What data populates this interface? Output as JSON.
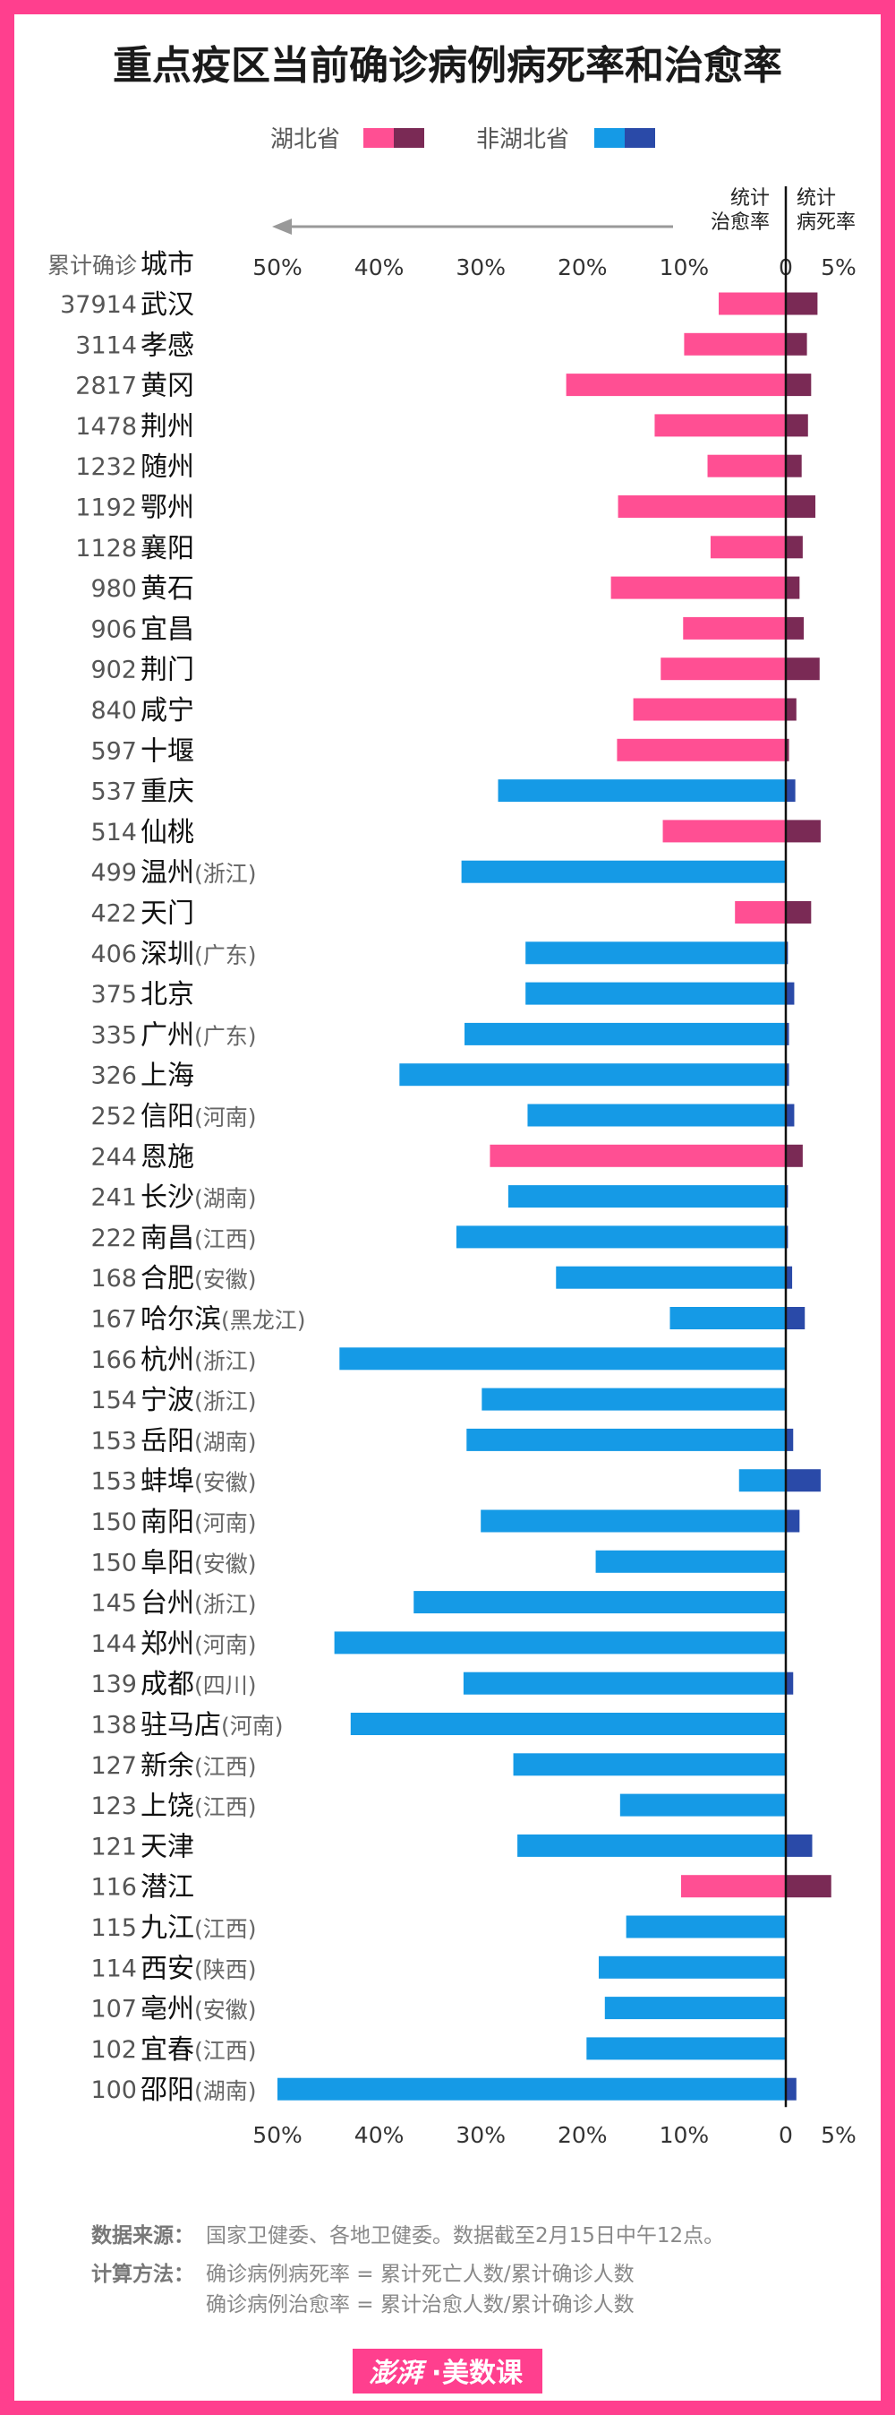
{
  "chart_data": {
    "type": "bar",
    "title": "重点疫区当前确诊病例病死率和治愈率",
    "legend": [
      {
        "name": "湖北省",
        "recovery_color": "#ff4f93",
        "death_color": "#7a2a55"
      },
      {
        "name": "非湖北省",
        "recovery_color": "#159ae6",
        "death_color": "#2a4aa8"
      }
    ],
    "column_headers": {
      "count": "累计确诊",
      "city": "城市",
      "recovery": "统计\n治愈率",
      "death": "统计\n病死率"
    },
    "recovery_axis": {
      "ticks": [
        "50%",
        "40%",
        "30%",
        "20%",
        "10%"
      ],
      "tick_values": [
        50,
        40,
        30,
        20,
        10
      ],
      "max": 50
    },
    "death_axis": {
      "ticks": [
        "0",
        "5%"
      ],
      "tick_values": [
        0,
        5
      ],
      "max": 5
    },
    "rows": [
      {
        "count": "37914",
        "city": "武汉",
        "province": "",
        "hubei": true,
        "recovery": 6.6,
        "death": 3.0
      },
      {
        "count": "3114",
        "city": "孝感",
        "province": "",
        "hubei": true,
        "recovery": 10.0,
        "death": 2.0
      },
      {
        "count": "2817",
        "city": "黄冈",
        "province": "",
        "hubei": true,
        "recovery": 21.6,
        "death": 2.4
      },
      {
        "count": "1478",
        "city": "荆州",
        "province": "",
        "hubei": true,
        "recovery": 12.9,
        "death": 2.1
      },
      {
        "count": "1232",
        "city": "随州",
        "province": "",
        "hubei": true,
        "recovery": 7.7,
        "death": 1.5
      },
      {
        "count": "1192",
        "city": "鄂州",
        "province": "",
        "hubei": true,
        "recovery": 16.5,
        "death": 2.8
      },
      {
        "count": "1128",
        "city": "襄阳",
        "province": "",
        "hubei": true,
        "recovery": 7.4,
        "death": 1.6
      },
      {
        "count": "980",
        "city": "黄石",
        "province": "",
        "hubei": true,
        "recovery": 17.2,
        "death": 1.3
      },
      {
        "count": "906",
        "city": "宜昌",
        "province": "",
        "hubei": true,
        "recovery": 10.1,
        "death": 1.7
      },
      {
        "count": "902",
        "city": "荆门",
        "province": "",
        "hubei": true,
        "recovery": 12.3,
        "death": 3.2
      },
      {
        "count": "840",
        "city": "咸宁",
        "province": "",
        "hubei": true,
        "recovery": 15.0,
        "death": 1.0
      },
      {
        "count": "597",
        "city": "十堰",
        "province": "",
        "hubei": true,
        "recovery": 16.6,
        "death": 0.3
      },
      {
        "count": "537",
        "city": "重庆",
        "province": "",
        "hubei": false,
        "recovery": 28.3,
        "death": 0.9
      },
      {
        "count": "514",
        "city": "仙桃",
        "province": "",
        "hubei": true,
        "recovery": 12.1,
        "death": 3.3
      },
      {
        "count": "499",
        "city": "温州",
        "province": "(浙江)",
        "hubei": false,
        "recovery": 31.9,
        "death": 0.0
      },
      {
        "count": "422",
        "city": "天门",
        "province": "",
        "hubei": true,
        "recovery": 5.0,
        "death": 2.4
      },
      {
        "count": "406",
        "city": "深圳",
        "province": "(广东)",
        "hubei": false,
        "recovery": 25.6,
        "death": 0.2
      },
      {
        "count": "375",
        "city": "北京",
        "province": "",
        "hubei": false,
        "recovery": 25.6,
        "death": 0.8
      },
      {
        "count": "335",
        "city": "广州",
        "province": "(广东)",
        "hubei": false,
        "recovery": 31.6,
        "death": 0.3
      },
      {
        "count": "326",
        "city": "上海",
        "province": "",
        "hubei": false,
        "recovery": 38.0,
        "death": 0.3
      },
      {
        "count": "252",
        "city": "信阳",
        "province": "(河南)",
        "hubei": false,
        "recovery": 25.4,
        "death": 0.8
      },
      {
        "count": "244",
        "city": "恩施",
        "province": "",
        "hubei": true,
        "recovery": 29.1,
        "death": 1.6
      },
      {
        "count": "241",
        "city": "长沙",
        "province": "(湖南)",
        "hubei": false,
        "recovery": 27.3,
        "death": 0.2
      },
      {
        "count": "222",
        "city": "南昌",
        "province": "(江西)",
        "hubei": false,
        "recovery": 32.4,
        "death": 0.2
      },
      {
        "count": "168",
        "city": "合肥",
        "province": "(安徽)",
        "hubei": false,
        "recovery": 22.6,
        "death": 0.6
      },
      {
        "count": "167",
        "city": "哈尔滨",
        "province": "(黑龙江)",
        "hubei": false,
        "recovery": 11.4,
        "death": 1.8
      },
      {
        "count": "166",
        "city": "杭州",
        "province": "(浙江)",
        "hubei": false,
        "recovery": 43.9,
        "death": 0.0
      },
      {
        "count": "154",
        "city": "宁波",
        "province": "(浙江)",
        "hubei": false,
        "recovery": 29.9,
        "death": 0.0
      },
      {
        "count": "153",
        "city": "岳阳",
        "province": "(湖南)",
        "hubei": false,
        "recovery": 31.4,
        "death": 0.7
      },
      {
        "count": "153",
        "city": "蚌埠",
        "province": "(安徽)",
        "hubei": false,
        "recovery": 4.6,
        "death": 3.3
      },
      {
        "count": "150",
        "city": "南阳",
        "province": "(河南)",
        "hubei": false,
        "recovery": 30.0,
        "death": 1.3
      },
      {
        "count": "150",
        "city": "阜阳",
        "province": "(安徽)",
        "hubei": false,
        "recovery": 18.7,
        "death": 0.0
      },
      {
        "count": "145",
        "city": "台州",
        "province": "(浙江)",
        "hubei": false,
        "recovery": 36.6,
        "death": 0.0
      },
      {
        "count": "144",
        "city": "郑州",
        "province": "(河南)",
        "hubei": false,
        "recovery": 44.4,
        "death": 0.0
      },
      {
        "count": "139",
        "city": "成都",
        "province": "(四川)",
        "hubei": false,
        "recovery": 31.7,
        "death": 0.7
      },
      {
        "count": "138",
        "city": "驻马店",
        "province": "(河南)",
        "hubei": false,
        "recovery": 42.8,
        "death": 0.0
      },
      {
        "count": "127",
        "city": "新余",
        "province": "(江西)",
        "hubei": false,
        "recovery": 26.8,
        "death": 0.0
      },
      {
        "count": "123",
        "city": "上饶",
        "province": "(江西)",
        "hubei": false,
        "recovery": 16.3,
        "death": 0.0
      },
      {
        "count": "121",
        "city": "天津",
        "province": "",
        "hubei": false,
        "recovery": 26.4,
        "death": 2.5
      },
      {
        "count": "116",
        "city": "潜江",
        "province": "",
        "hubei": true,
        "recovery": 10.3,
        "death": 4.3
      },
      {
        "count": "115",
        "city": "九江",
        "province": "(江西)",
        "hubei": false,
        "recovery": 15.7,
        "death": 0.0
      },
      {
        "count": "114",
        "city": "西安",
        "province": "(陕西)",
        "hubei": false,
        "recovery": 18.4,
        "death": 0.0
      },
      {
        "count": "107",
        "city": "亳州",
        "province": "(安徽)",
        "hubei": false,
        "recovery": 17.8,
        "death": 0.0
      },
      {
        "count": "102",
        "city": "宜春",
        "province": "(江西)",
        "hubei": false,
        "recovery": 19.6,
        "death": 0.0
      },
      {
        "count": "100",
        "city": "邵阳",
        "province": "(湖南)",
        "hubei": false,
        "recovery": 50.0,
        "death": 1.0
      }
    ]
  },
  "footer": {
    "source_label": "数据来源：",
    "source_text": "国家卫健委、各地卫健委。数据截至2月15日中午12点。",
    "method_label": "计算方法：",
    "method_line1": "确诊病例病死率 = 累计死亡人数/累计确诊人数",
    "method_line2": "确诊病例治愈率 = 累计治愈人数/累计确诊人数"
  },
  "brand": {
    "logo": "澎湃",
    "name": "美数课"
  }
}
